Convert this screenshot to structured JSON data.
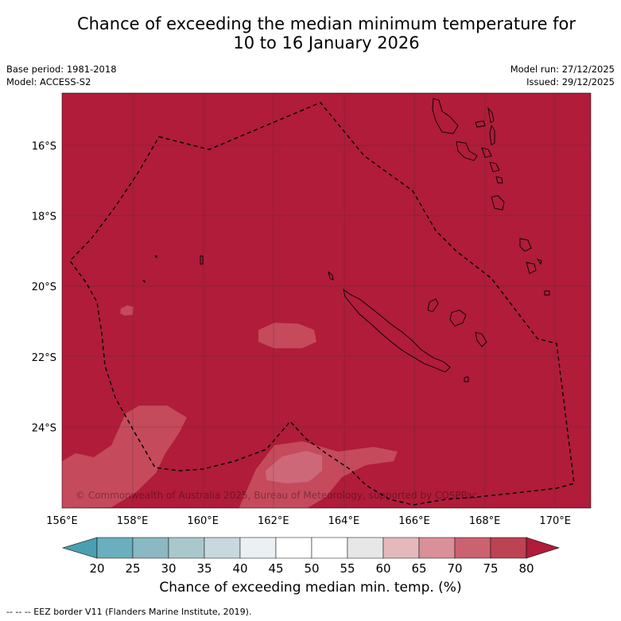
{
  "title": {
    "line1": "Chance of exceeding the median minimum temperature for",
    "line2": "10 to 16 January 2026"
  },
  "meta_left": {
    "base_period": "Base period: 1981-2018",
    "model": "Model: ACCESS-S2"
  },
  "meta_right": {
    "model_run": "Model run: 27/12/2025",
    "issued": "Issued: 29/12/2025"
  },
  "map": {
    "lon_ticks": [
      "156°E",
      "158°E",
      "160°E",
      "162°E",
      "164°E",
      "166°E",
      "168°E",
      "170°E"
    ],
    "lat_ticks": [
      "16°S",
      "18°S",
      "20°S",
      "22°S",
      "24°S"
    ],
    "lon_range": [
      156,
      171
    ],
    "lat_range": [
      -26.2,
      -14.3
    ],
    "background_color": "#b01c3a",
    "copyright": "© Commonwealth of Australia 2025, Bureau of Meteorology, supported by COSPPac"
  },
  "colorbar": {
    "labels": [
      "20",
      "25",
      "30",
      "35",
      "40",
      "45",
      "50",
      "55",
      "60",
      "65",
      "70",
      "75",
      "80"
    ],
    "colors": [
      "#6aafbd",
      "#8ab8c3",
      "#a9c8cc",
      "#c7d9dd",
      "#ebf1f3",
      "#ffffff",
      "#ffffff",
      "#e7e7e7",
      "#e3b9be",
      "#d99098",
      "#cb6270",
      "#bd4353"
    ],
    "low_extend_color": "#4aa0b0",
    "high_extend_color": "#b01c3a",
    "title": "Chance of exceeding median min. temp. (%)"
  },
  "footer": "--  --  -- EEZ border V11 (Flanders Marine Institute, 2019)."
}
